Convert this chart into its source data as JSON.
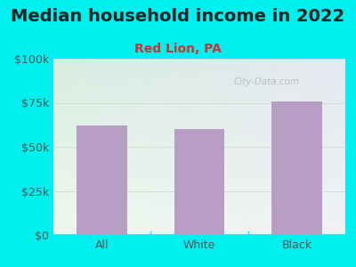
{
  "title": "Median household income in 2022",
  "subtitle": "Red Lion, PA",
  "categories": [
    "All",
    "White",
    "Black"
  ],
  "values": [
    62000,
    60000,
    76000
  ],
  "bar_color": "#b89ec4",
  "background_outer": "#00efef",
  "plot_bg_top": "#d8ede2",
  "plot_bg_bottom": "#eef8ee",
  "plot_bg_right": "#e8e8f0",
  "ylim": [
    0,
    100000
  ],
  "yticks": [
    0,
    25000,
    50000,
    75000,
    100000
  ],
  "ytick_labels": [
    "$0",
    "$25k",
    "$50k",
    "$75k",
    "$100k"
  ],
  "title_fontsize": 14,
  "subtitle_fontsize": 10,
  "tick_fontsize": 9,
  "title_color": "#222222",
  "subtitle_color": "#cc3333",
  "tick_color": "#555555",
  "watermark": "City-Data.com",
  "watermark_color": "#b0b8c0",
  "divider_color": "#00efef",
  "grid_color": "#ccddcc"
}
